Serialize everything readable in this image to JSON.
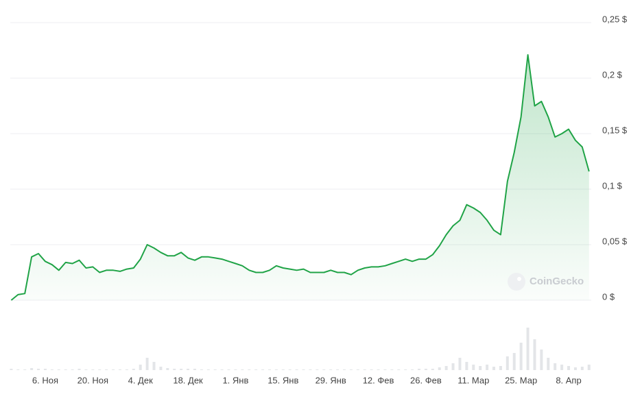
{
  "chart_data": {
    "type": "area",
    "watermark": "CoinGecko",
    "categories": [
      null,
      null,
      null,
      null,
      null,
      "6. Ноя",
      null,
      null,
      null,
      null,
      null,
      null,
      "20. Ноя",
      null,
      null,
      null,
      null,
      null,
      null,
      "4. Дек",
      null,
      null,
      null,
      null,
      null,
      null,
      "18. Дек",
      null,
      null,
      null,
      null,
      null,
      null,
      "1. Янв",
      null,
      null,
      null,
      null,
      null,
      null,
      "15. Янв",
      null,
      null,
      null,
      null,
      null,
      null,
      "29. Янв",
      null,
      null,
      null,
      null,
      null,
      null,
      "12. Фев",
      null,
      null,
      null,
      null,
      null,
      null,
      "26. Фев",
      null,
      null,
      null,
      null,
      null,
      null,
      "11. Мар",
      null,
      null,
      null,
      null,
      null,
      null,
      "25. Мар",
      null,
      null,
      null,
      null,
      null,
      null,
      "8. Апр",
      null,
      null,
      null
    ],
    "values": [
      0.0,
      0.005,
      0.006,
      0.039,
      0.042,
      0.035,
      0.032,
      0.027,
      0.034,
      0.033,
      0.036,
      0.029,
      0.03,
      0.025,
      0.027,
      0.027,
      0.026,
      0.028,
      0.029,
      0.037,
      0.05,
      0.047,
      0.043,
      0.04,
      0.04,
      0.043,
      0.038,
      0.036,
      0.039,
      0.039,
      0.038,
      0.037,
      0.035,
      0.033,
      0.031,
      0.027,
      0.025,
      0.025,
      0.027,
      0.031,
      0.029,
      0.028,
      0.027,
      0.028,
      0.025,
      0.025,
      0.025,
      0.027,
      0.025,
      0.025,
      0.023,
      0.027,
      0.029,
      0.03,
      0.03,
      0.031,
      0.033,
      0.035,
      0.037,
      0.035,
      0.037,
      0.037,
      0.041,
      0.049,
      0.059,
      0.067,
      0.072,
      0.086,
      0.083,
      0.079,
      0.072,
      0.063,
      0.059,
      0.107,
      0.133,
      0.165,
      0.221,
      0.175,
      0.179,
      0.165,
      0.147,
      0.15,
      0.154,
      0.144,
      0.138,
      0.116
    ],
    "color": "#1fa346",
    "ylim": [
      0,
      0.25
    ],
    "yticks": [
      {
        "value": 0,
        "label": "0 $"
      },
      {
        "value": 0.05,
        "label": "0,05 $"
      },
      {
        "value": 0.1,
        "label": "0,1 $"
      },
      {
        "value": 0.15,
        "label": "0,15 $"
      },
      {
        "value": 0.2,
        "label": "0,2 $"
      },
      {
        "value": 0.25,
        "label": "0,25 $"
      }
    ],
    "grid": true,
    "volume": {
      "color": "#e3e5e8",
      "ylim": [
        0,
        100
      ],
      "values": [
        2,
        1,
        1,
        3,
        2,
        2,
        1,
        1,
        1,
        1,
        2,
        1,
        1,
        1,
        1,
        1,
        1,
        1,
        2,
        8,
        18,
        12,
        5,
        3,
        2,
        2,
        2,
        2,
        1,
        1,
        1,
        1,
        1,
        1,
        1,
        1,
        1,
        1,
        1,
        1,
        1,
        1,
        1,
        1,
        1,
        1,
        1,
        1,
        1,
        1,
        1,
        1,
        1,
        1,
        1,
        1,
        1,
        1,
        1,
        1,
        2,
        2,
        2,
        4,
        6,
        10,
        18,
        12,
        8,
        6,
        8,
        5,
        6,
        20,
        25,
        40,
        62,
        45,
        30,
        18,
        10,
        8,
        6,
        4,
        5,
        8
      ]
    }
  }
}
